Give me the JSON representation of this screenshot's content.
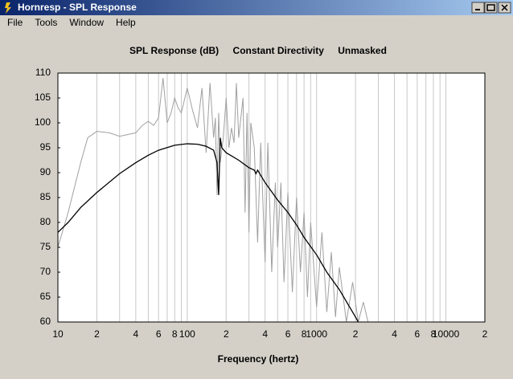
{
  "window": {
    "title": "Hornresp - SPL Response",
    "menu": [
      "File",
      "Tools",
      "Window",
      "Help"
    ]
  },
  "chart_data": {
    "type": "line",
    "title": "SPL Response (dB)",
    "xlabel": "Frequency (hertz)",
    "xscale": "log",
    "xlim": [
      10,
      20000
    ],
    "ylim": [
      60,
      110
    ],
    "xticks": [
      10,
      {
        "value": 20,
        "label": "2"
      },
      {
        "value": 40,
        "label": "4"
      },
      {
        "value": 60,
        "label": "6"
      },
      {
        "value": 80,
        "label": "8"
      },
      100,
      {
        "value": 200,
        "label": "2"
      },
      {
        "value": 400,
        "label": "4"
      },
      {
        "value": 600,
        "label": "6"
      },
      {
        "value": 800,
        "label": "8"
      },
      1000,
      {
        "value": 2000,
        "label": "2"
      },
      {
        "value": 4000,
        "label": "4"
      },
      {
        "value": 6000,
        "label": "6"
      },
      {
        "value": 8000,
        "label": "8"
      },
      10000,
      {
        "value": 20000,
        "label": "2"
      }
    ],
    "xgrid_minor": [
      30,
      50,
      70,
      90,
      300,
      500,
      700,
      900,
      3000,
      5000,
      7000,
      9000
    ],
    "yticks": [
      60,
      65,
      70,
      75,
      80,
      85,
      90,
      95,
      100,
      105,
      110
    ],
    "grid": true,
    "series": [
      {
        "name": "Constant Directivity",
        "color": "#000000",
        "x": [
          10,
          12,
          15,
          20,
          30,
          40,
          50,
          60,
          80,
          100,
          120,
          140,
          160,
          170,
          175,
          180,
          185,
          200,
          250,
          300,
          330,
          340,
          350,
          400,
          500,
          600,
          700,
          800,
          1000,
          1200,
          1500,
          2000,
          2100
        ],
        "values": [
          78,
          80,
          83,
          86,
          89.8,
          92,
          93.5,
          94.5,
          95.5,
          95.8,
          95.7,
          95.3,
          94.5,
          92,
          85.5,
          97,
          95,
          94,
          92.5,
          91,
          90.5,
          89.8,
          90.5,
          88,
          84.5,
          82,
          79.5,
          77,
          73.5,
          70,
          66.5,
          61,
          60
        ]
      },
      {
        "name": "Unmasked",
        "color": "#a0a0a0",
        "x": [
          10,
          12,
          15,
          17,
          20,
          25,
          30,
          40,
          45,
          50,
          55,
          60,
          65,
          70,
          75,
          80,
          85,
          90,
          100,
          110,
          120,
          130,
          140,
          150,
          160,
          165,
          170,
          175,
          180,
          190,
          200,
          210,
          220,
          230,
          240,
          250,
          270,
          280,
          290,
          300,
          310,
          330,
          350,
          370,
          400,
          420,
          450,
          480,
          500,
          530,
          560,
          600,
          650,
          700,
          750,
          800,
          850,
          900,
          1000,
          1100,
          1200,
          1300,
          1400,
          1500,
          1700,
          1900,
          2100,
          2300,
          2500
        ],
        "values": [
          75,
          82,
          92,
          97,
          98.3,
          98,
          97.3,
          98,
          99.5,
          100.3,
          99.5,
          101,
          109,
          100,
          102,
          105,
          103,
          102,
          107,
          102.5,
          99,
          107,
          94,
          108,
          97,
          101,
          85.5,
          102,
          92,
          97,
          105,
          95,
          99,
          96,
          108,
          97,
          105,
          82,
          102,
          78,
          100,
          95,
          76,
          96,
          72,
          96,
          70,
          88,
          75,
          88,
          68,
          86,
          66,
          85,
          70,
          82,
          65,
          80,
          63,
          78,
          62,
          74,
          61,
          71,
          60,
          68,
          60,
          64,
          60
        ]
      }
    ]
  }
}
